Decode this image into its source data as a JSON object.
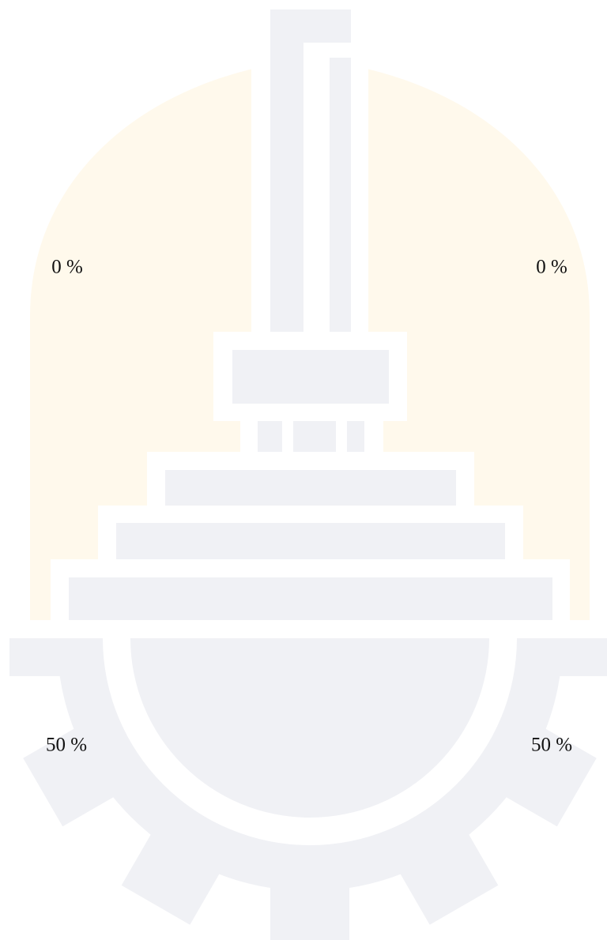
{
  "gauge_labels": {
    "upper_left": "0 %",
    "upper_right": "0 %",
    "lower_left": "50 %",
    "lower_right": "50 %"
  }
}
